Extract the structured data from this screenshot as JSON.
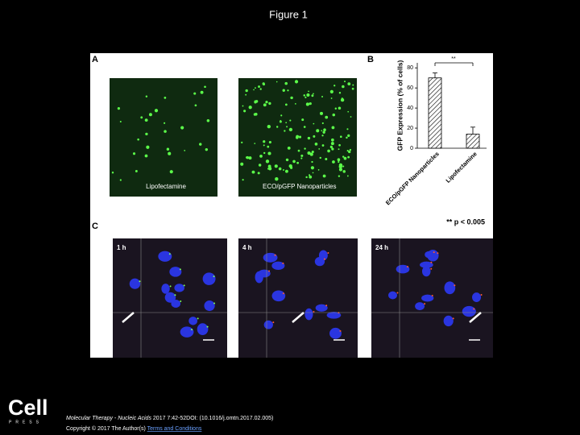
{
  "header": {
    "title": "Figure 1"
  },
  "panels": {
    "a": {
      "label": "A",
      "images": [
        "Lipofectamine",
        "ECO/pGFP Nanoparticles"
      ]
    },
    "b": {
      "label": "B",
      "chart_data": {
        "type": "bar",
        "y_label": "GFP Expression (% of cells)",
        "categories": [
          "ECO/pGFP Nanoparticles",
          "Lipofectamine"
        ],
        "values": [
          70,
          14
        ],
        "errors": [
          5,
          7
        ],
        "ylim": [
          0,
          85
        ],
        "yticks": [
          0,
          20,
          40,
          60,
          80
        ],
        "annotation": "**",
        "note": "** p < 0.005"
      }
    },
    "c": {
      "label": "C",
      "images": [
        "1 h",
        "4 h",
        "24 h"
      ]
    }
  },
  "footer": {
    "logo": "Cell",
    "logo_sub": "PRESS",
    "journal": "Molecular Therapy - Nucleic Acids",
    "citation": "2017 7:42-52DOI: (10.1016/j.omtn.2017.02.005)",
    "copyright": "Copyright © 2017 The Author(s)",
    "link": "Terms and Conditions"
  }
}
